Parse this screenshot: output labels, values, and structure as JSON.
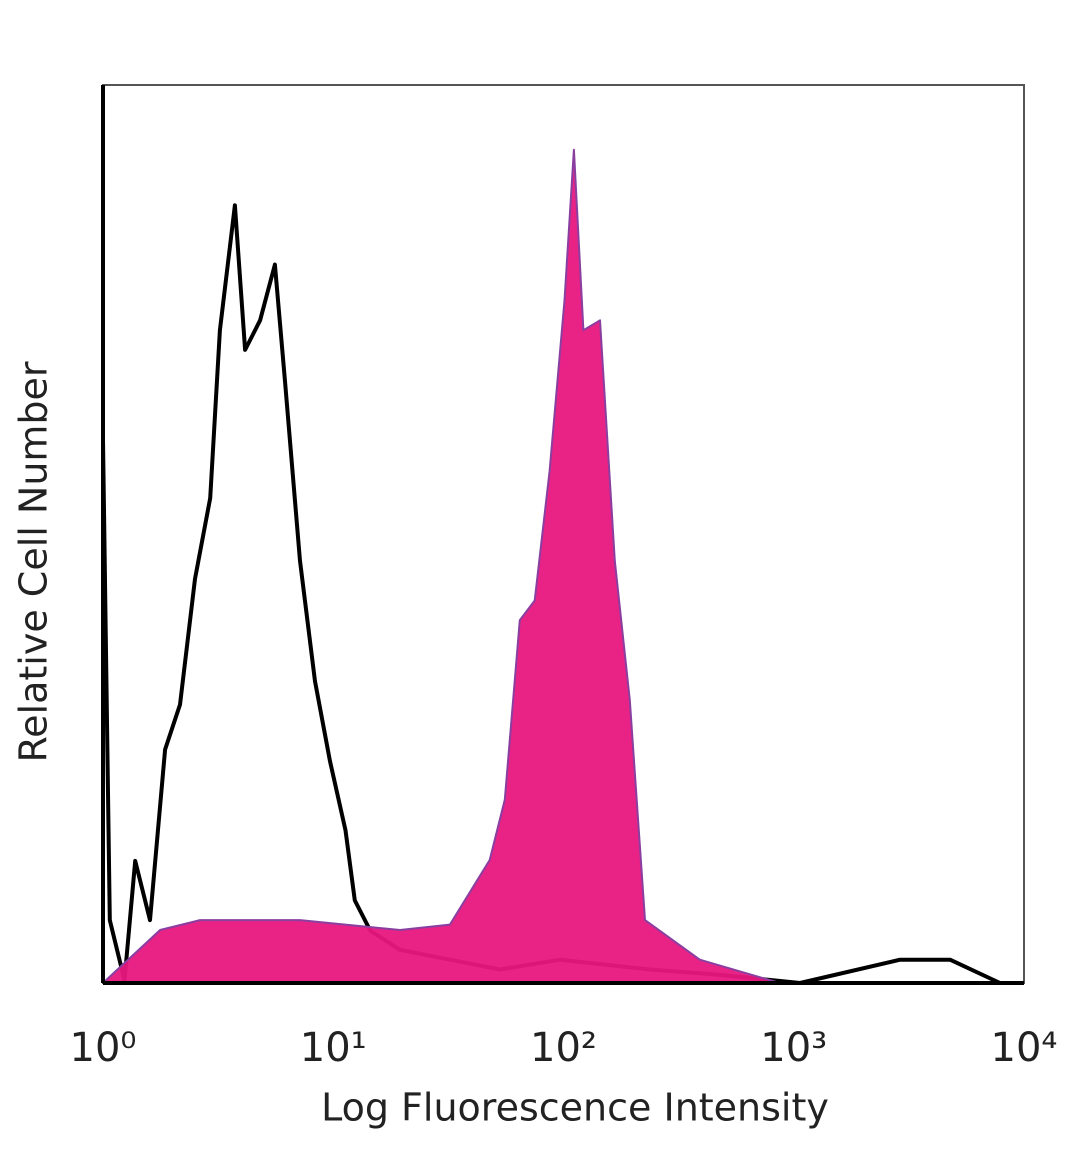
{
  "chart_data": {
    "type": "histogram-overlay",
    "xlabel": "Log Fluorescence Intensity",
    "ylabel": "Relative Cell Number",
    "log_x": true,
    "xlim": [
      1,
      10000
    ],
    "ylim": [
      0,
      100
    ],
    "xticks": [
      {
        "value": 1,
        "label": "10⁰"
      },
      {
        "value": 10,
        "label": "10¹"
      },
      {
        "value": 100,
        "label": "10²"
      },
      {
        "value": 1000,
        "label": "10³"
      },
      {
        "value": 10000,
        "label": "10⁴"
      }
    ],
    "series": [
      {
        "name": null,
        "color": "#000000",
        "fill": false,
        "x": [
          1,
          1.07,
          1.24,
          1.38,
          1.6,
          1.86,
          2.16,
          2.51,
          2.92,
          3.22,
          3.74,
          4.14,
          4.81,
          5.58,
          6.17,
          7.17,
          8.33,
          9.68,
          11.3,
          12.4,
          14.5,
          19.5,
          32.1,
          53,
          96.6,
          238,
          479,
          1064,
          2893,
          4775,
          7870
        ],
        "values": [
          60.5,
          7,
          0.3,
          13.6,
          7,
          26,
          31,
          45,
          54,
          72.7,
          86.6,
          70.5,
          73.8,
          80,
          67,
          47,
          33.6,
          24.7,
          17,
          9.2,
          5.8,
          3.7,
          2.6,
          1.5,
          2.6,
          1.5,
          0.9,
          0,
          2.6,
          2.6,
          0
        ]
      },
      {
        "name": null,
        "color": "#e8177f",
        "fill": true,
        "x": [
          1,
          1.77,
          2.64,
          7.17,
          19.5,
          32.1,
          47.8,
          55.6,
          64.6,
          75,
          87,
          101,
          111,
          122,
          144,
          167,
          194,
          226,
          391,
          870,
          10000
        ],
        "values": [
          0,
          5.9,
          7,
          7,
          5.9,
          6.5,
          13.7,
          20.4,
          40.4,
          42.6,
          57,
          76,
          92.8,
          72.7,
          73.8,
          47,
          31.5,
          7,
          2.6,
          0,
          0
        ]
      }
    ]
  }
}
